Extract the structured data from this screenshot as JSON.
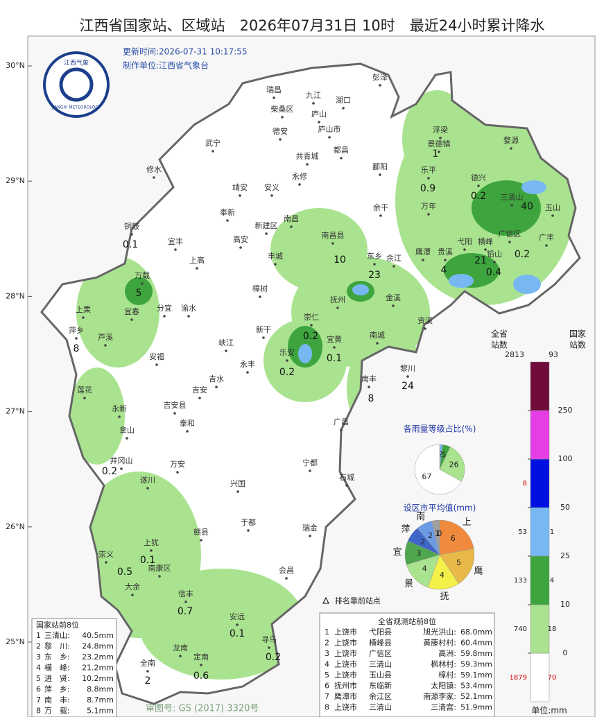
{
  "header": {
    "title": "江西省国家站、区域站　2026年07月31日 10时　最近24小时累计降水",
    "update_time": "更新时间:2026-07-31 10:17:55",
    "producer": "制作单位:江西省气象台",
    "logo_top": "江西气象",
    "logo_bottom": "JIANGXI METEOROLOGY"
  },
  "lat_labels": [
    "30°N",
    "29°N",
    "28°N",
    "27°N",
    "26°N",
    "25°N"
  ],
  "places": [
    "彭泽",
    "瑞昌",
    "九江",
    "湖口",
    "柴桑区",
    "庐山",
    "浮梁",
    "德安",
    "庐山市",
    "景德镇",
    "武宁",
    "都昌",
    "婺源",
    "共青城",
    "修水",
    "鄱阳",
    "乐平",
    "永修",
    "德兴",
    "靖安",
    "安义",
    "三清山",
    "余干",
    "万年",
    "玉山",
    "奉新",
    "南昌",
    "铜鼓",
    "新建区",
    "南昌县",
    "宜丰",
    "高安",
    "弋阳",
    "横峰",
    "广信区",
    "广丰",
    "鹰潭",
    "贵溪",
    "铅山",
    "上高",
    "丰城",
    "东乡",
    "余江",
    "万载",
    "上栗",
    "金溪",
    "宜春",
    "分宜",
    "渝水",
    "樟树",
    "抚州",
    "崇仁",
    "萍乡",
    "芦溪",
    "资溪",
    "新干",
    "宜黄",
    "南城",
    "乐安",
    "峡江",
    "安福",
    "永丰",
    "黎川",
    "吉水",
    "南丰",
    "吉安",
    "莲花",
    "永新",
    "吉安县",
    "广昌",
    "泰和",
    "拿山",
    "井冈山",
    "万安",
    "宁都",
    "遂川",
    "兴国",
    "石城",
    "于都",
    "瑞金",
    "赣县",
    "上犹",
    "崇义",
    "南康区",
    "会昌",
    "大余",
    "信丰",
    "安远",
    "寻乌",
    "龙南",
    "定南",
    "全南"
  ],
  "station_values": [
    1,
    0.9,
    0.2,
    40,
    0.1,
    10,
    23,
    21,
    0.2,
    4,
    0.4,
    5,
    8,
    0.2,
    0.1,
    0.2,
    24,
    8,
    0.2,
    0.1,
    0.5,
    0.7,
    0.1,
    0.2,
    0.6,
    2
  ],
  "top_station_note": "排名靠前站点",
  "legend": {
    "province_header": [
      "全省",
      "站数"
    ],
    "national_header": [
      "国家",
      "站数"
    ],
    "province_total": 2813,
    "national_total": 93,
    "colors": [
      "#ffffff",
      "#a9e38f",
      "#3ea53e",
      "#78b8f2",
      "#0010e0",
      "#e63de6",
      "#700c3c"
    ],
    "thresholds": [
      0,
      10,
      25,
      50,
      100,
      250
    ],
    "province_counts": [
      1879,
      740,
      133,
      53,
      8
    ],
    "national_counts": [
      70,
      18,
      4,
      1
    ],
    "unit": "单位:mm"
  },
  "pie_levels": {
    "title": "各雨量等级占比(%)",
    "values": [
      2,
      5,
      26,
      67
    ],
    "colors": [
      "#78b8f2",
      "#3ea53e",
      "#a9e38f",
      "#ffffff"
    ]
  },
  "pie_cities": {
    "title": "设区市平均值(mm)",
    "categories": [
      "上",
      "鹰",
      "抚",
      "景",
      "宜",
      "萍",
      "南",
      null,
      null
    ],
    "values": [
      6,
      5,
      4,
      4,
      3,
      2,
      2,
      1,
      0
    ],
    "colors": [
      "#f08a3c",
      "#e8b848",
      "#f4f04a",
      "#a9e38f",
      "#4ea64e",
      "#3f66c8",
      "#6c9ce6",
      "#a0a0a0",
      "#808080"
    ]
  },
  "national_table": {
    "title": "国家站前8位",
    "rows": [
      [
        "1",
        "三清山:",
        "40.5mm"
      ],
      [
        "2",
        "黎　川:",
        "24.8mm"
      ],
      [
        "3",
        "东　乡:",
        "23.2mm"
      ],
      [
        "4",
        "横　峰:",
        "21.2mm"
      ],
      [
        "5",
        "进　贤:",
        "10.2mm"
      ],
      [
        "6",
        "萍　乡:",
        "8.8mm"
      ],
      [
        "7",
        "南　丰:",
        "8.7mm"
      ],
      [
        "8",
        "万　载:",
        "5.1mm"
      ]
    ]
  },
  "province_table": {
    "title": "全省观测站前8位",
    "rows": [
      [
        "1",
        "上饶市",
        "弋阳县",
        "旭光洪山:",
        "68.0mm"
      ],
      [
        "2",
        "上饶市",
        "横峰县",
        "黄藤村村:",
        "60.4mm"
      ],
      [
        "3",
        "上饶市",
        "广信区",
        "高洲:",
        "59.8mm"
      ],
      [
        "4",
        "上饶市",
        "三清山",
        "枫林村:",
        "59.3mm"
      ],
      [
        "5",
        "上饶市",
        "玉山县",
        "樟村:",
        "59.1mm"
      ],
      [
        "6",
        "抚州市",
        "东临新",
        "太阳镇:",
        "53.4mm"
      ],
      [
        "7",
        "鹰潭市",
        "余江区",
        "南源李家:",
        "52.1mm"
      ],
      [
        "8",
        "上饶市",
        "三清山",
        "三清宫:",
        "51.9mm"
      ]
    ]
  },
  "footer": "审图号: GS (2017) 3320号"
}
